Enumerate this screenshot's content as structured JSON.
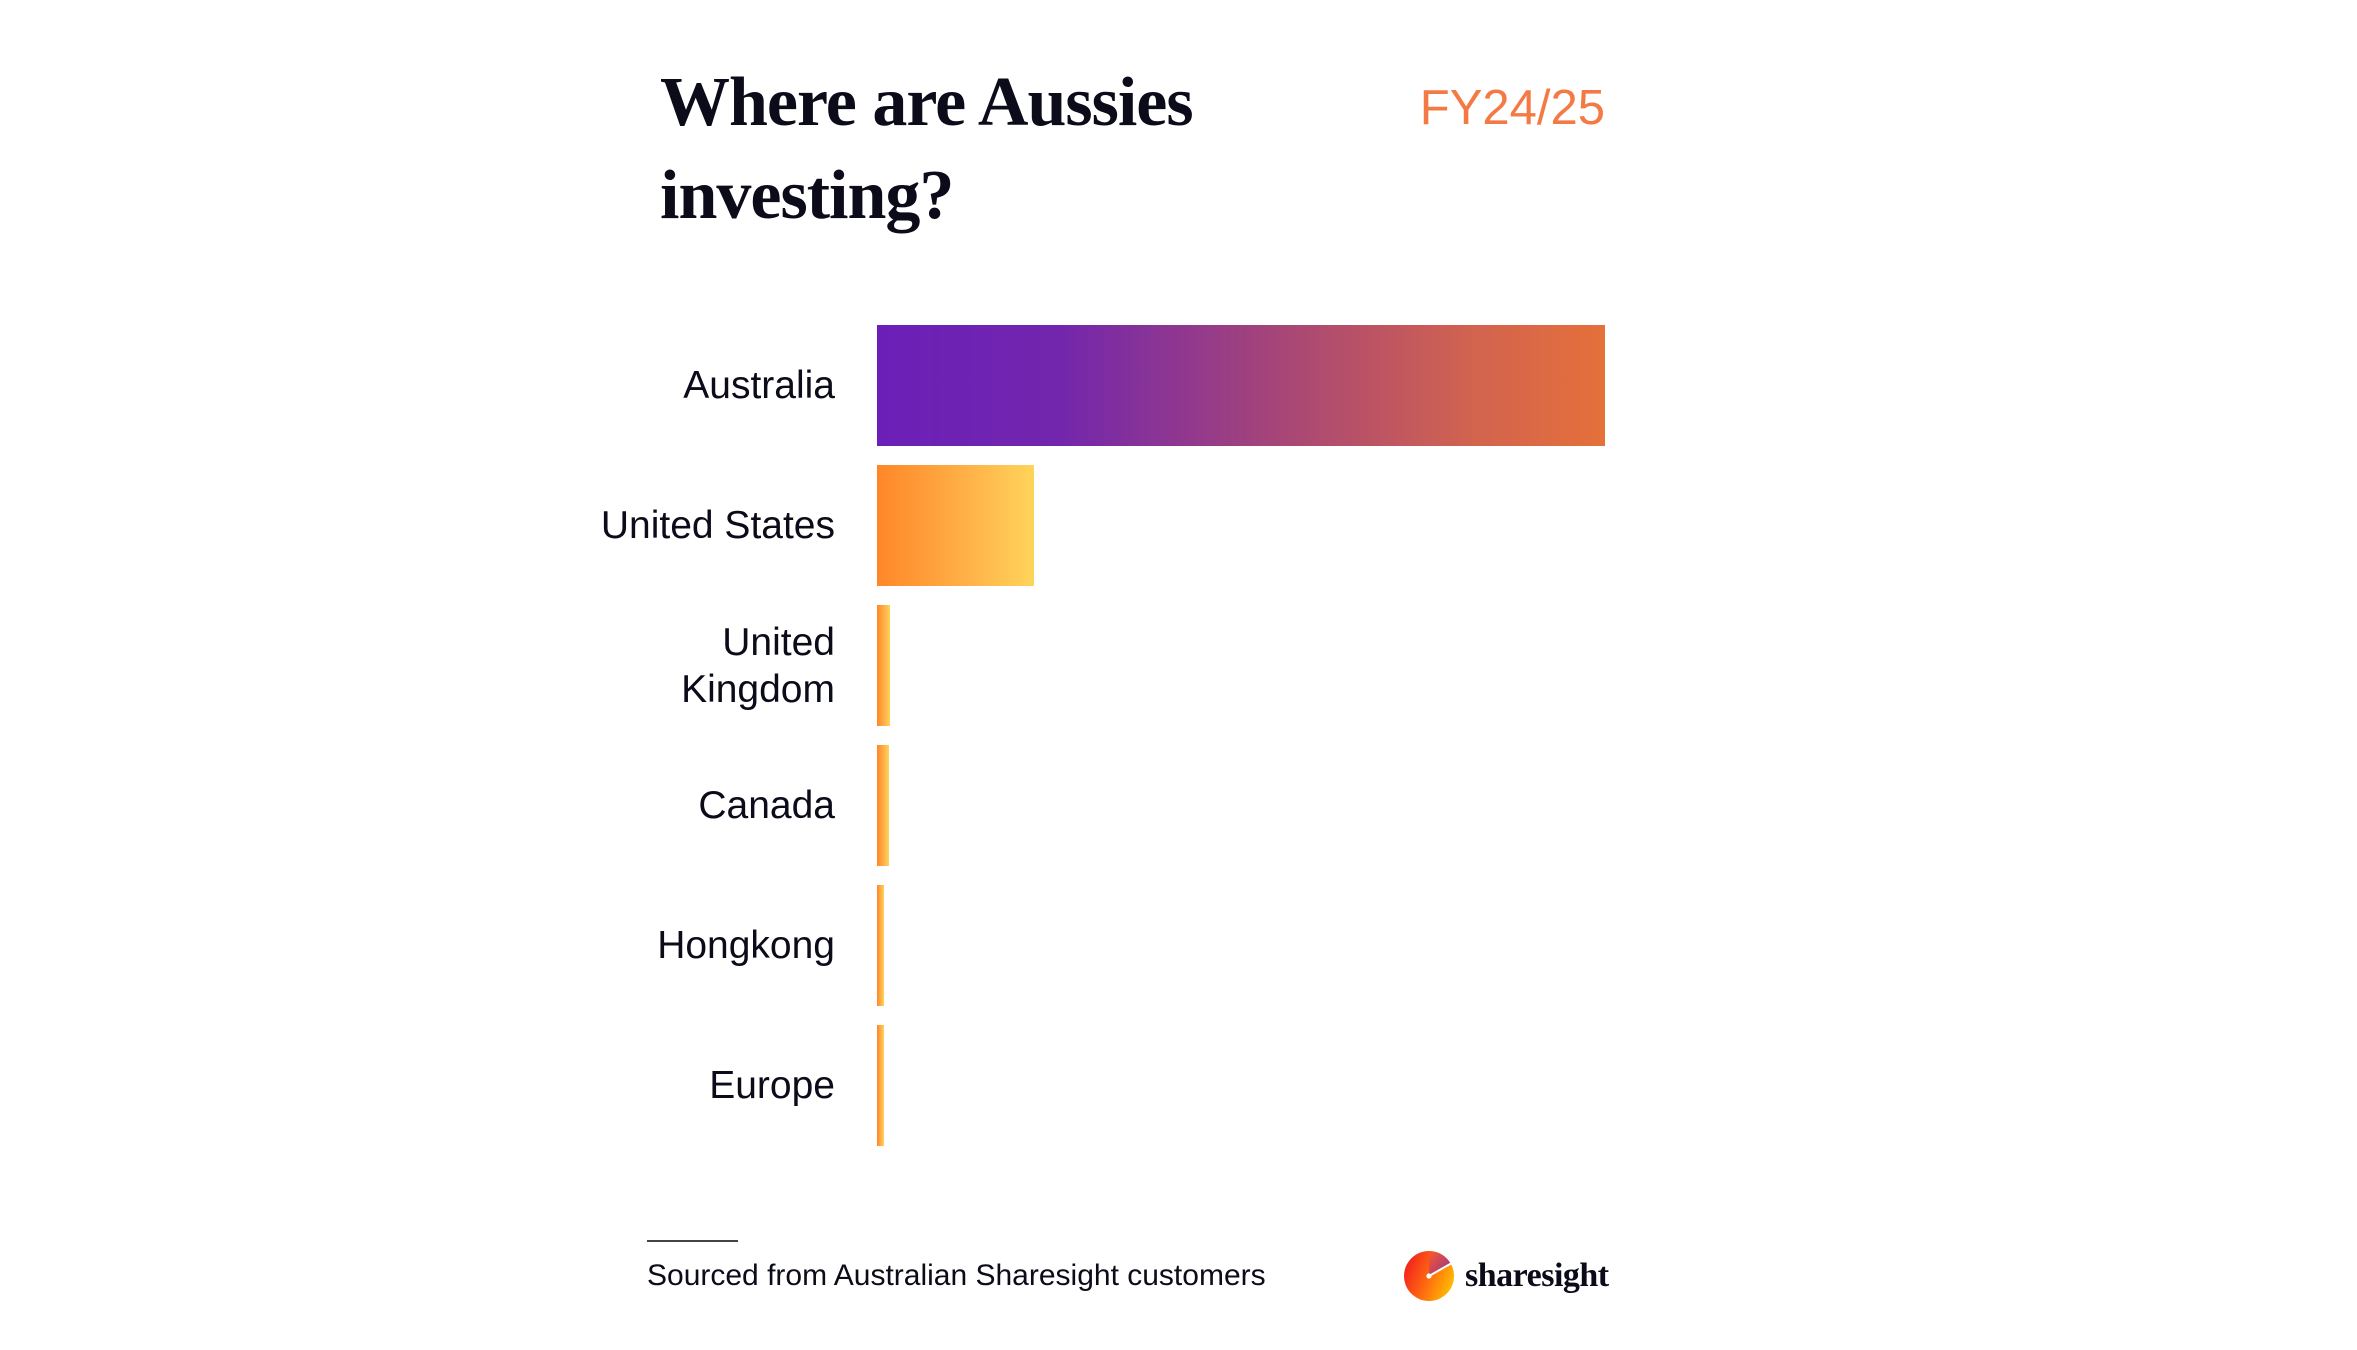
{
  "header": {
    "title": "Where are Aussies investing?",
    "period": "FY24/25"
  },
  "colors": {
    "title": "#0b0b19",
    "period": "#f47a45",
    "australia_gradient": [
      "#6b1fb8",
      "#e5703a"
    ],
    "other_gradient": [
      "#ff8628",
      "#ffd45a"
    ]
  },
  "chart_data": {
    "type": "bar",
    "orientation": "horizontal",
    "title": "Where are Aussies investing?",
    "subtitle": "FY24/25",
    "categories": [
      "Australia",
      "United States",
      "United Kingdom",
      "Canada",
      "Hongkong",
      "Europe"
    ],
    "values": [
      100,
      21.6,
      1.8,
      1.6,
      1.0,
      1.0
    ],
    "value_unit": "relative bar length (% of largest, estimated; no axis shown)",
    "xlabel": "",
    "ylabel": "",
    "grid": false,
    "legend": null,
    "source_note": "Sourced from Australian Sharesight customers"
  },
  "chart": {
    "rows": [
      {
        "label": "Australia",
        "value": 100
      },
      {
        "label": "United States",
        "value": 21.6
      },
      {
        "label": "United Kingdom",
        "value": 1.8
      },
      {
        "label": "Canada",
        "value": 1.6
      },
      {
        "label": "Hongkong",
        "value": 1.0
      },
      {
        "label": "Europe",
        "value": 1.0
      }
    ]
  },
  "footer": {
    "source": "Sourced from Australian Sharesight customers",
    "brand": "sharesight",
    "brand_icon": "sharesight-gauge-logo-icon"
  }
}
